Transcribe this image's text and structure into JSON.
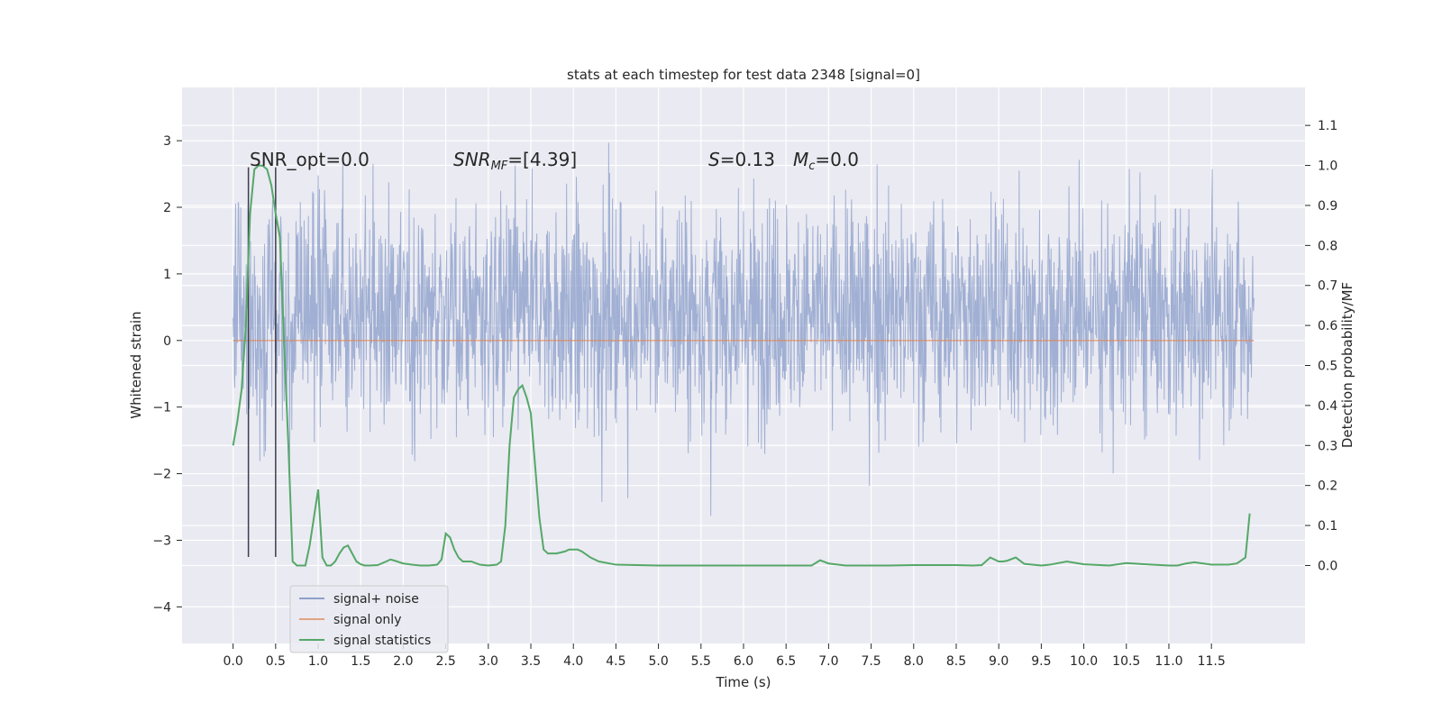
{
  "chart_data": {
    "type": "line",
    "title": "stats at each timestep for test data 2348 [signal=0]",
    "xlabel": "Time (s)",
    "ylabel_left": "Whitened strain",
    "ylabel_right": "Detection probability/MF",
    "xlim": [
      -0.6,
      12.6
    ],
    "ylim_left": [
      -4.55,
      3.8
    ],
    "ylim_right": [
      -0.195,
      1.195
    ],
    "x_ticks": [
      0.0,
      0.5,
      1.0,
      1.5,
      2.0,
      2.5,
      3.0,
      3.5,
      4.0,
      4.5,
      5.0,
      5.5,
      6.0,
      6.5,
      7.0,
      7.5,
      8.0,
      8.5,
      9.0,
      9.5,
      10.0,
      10.5,
      11.0,
      11.5
    ],
    "x_tick_labels": [
      "0.0",
      "0.5",
      "1.0",
      "1.5",
      "2.0",
      "2.5",
      "3.0",
      "3.5",
      "4.0",
      "4.5",
      "5.0",
      "5.5",
      "6.0",
      "6.5",
      "7.0",
      "7.5",
      "8.0",
      "8.5",
      "9.0",
      "9.5",
      "10.0",
      "10.5",
      "11.0",
      "11.5"
    ],
    "y_left_ticks": [
      -4,
      -3,
      -2,
      -1,
      0,
      1,
      2,
      3
    ],
    "y_left_tick_labels": [
      "−4",
      "−3",
      "−2",
      "−1",
      "0",
      "1",
      "2",
      "3"
    ],
    "y_right_ticks": [
      0.0,
      0.1,
      0.2,
      0.3,
      0.4,
      0.5,
      0.6,
      0.7,
      0.8,
      0.9,
      1.0,
      1.1
    ],
    "y_right_tick_labels": [
      "0.0",
      "0.1",
      "0.2",
      "0.3",
      "0.4",
      "0.5",
      "0.6",
      "0.7",
      "0.8",
      "0.9",
      "1.0",
      "1.1"
    ],
    "grid": true,
    "legend_position": "lower-left",
    "annotations": {
      "snr_opt": "SNR_opt=0.0",
      "snr_mf_sym": "SNR",
      "snr_mf_sub": "MF",
      "snr_mf_val": "=[4.39]",
      "s_sym": "S",
      "s_val": "=0.13",
      "mc_sym": "M",
      "mc_sub": "c",
      "mc_val": "=0.0"
    },
    "vertical_markers_x": [
      0.18,
      0.5
    ],
    "vertical_markers_range": [
      -3.25,
      2.6
    ],
    "series": [
      {
        "name": "signal+ noise",
        "axis": "left",
        "color": "#8da0cb",
        "description_range": [
          -4.1,
          3.5
        ],
        "x_range": [
          0.0,
          12.0
        ]
      },
      {
        "name": "signal only",
        "axis": "left",
        "color": "#dd8452",
        "x": [
          0.0,
          12.0
        ],
        "values": [
          0.0,
          0.0
        ]
      },
      {
        "name": "signal statistics",
        "axis": "right",
        "color": "#55a868",
        "x": [
          0.0,
          0.05,
          0.1,
          0.15,
          0.2,
          0.25,
          0.3,
          0.35,
          0.4,
          0.45,
          0.5,
          0.55,
          0.6,
          0.65,
          0.7,
          0.75,
          0.8,
          0.85,
          0.9,
          0.95,
          1.0,
          1.05,
          1.1,
          1.15,
          1.2,
          1.25,
          1.3,
          1.35,
          1.4,
          1.45,
          1.5,
          1.55,
          1.6,
          1.7,
          1.8,
          1.85,
          1.9,
          2.0,
          2.1,
          2.2,
          2.3,
          2.4,
          2.45,
          2.5,
          2.55,
          2.6,
          2.65,
          2.7,
          2.8,
          2.9,
          3.0,
          3.1,
          3.15,
          3.2,
          3.25,
          3.3,
          3.35,
          3.4,
          3.45,
          3.5,
          3.55,
          3.6,
          3.65,
          3.7,
          3.8,
          3.9,
          3.95,
          4.0,
          4.05,
          4.1,
          4.2,
          4.3,
          4.5,
          5.0,
          6.0,
          6.8,
          6.9,
          7.0,
          7.2,
          7.5,
          7.7,
          8.0,
          8.5,
          8.7,
          8.8,
          8.9,
          9.0,
          9.05,
          9.1,
          9.2,
          9.3,
          9.5,
          9.6,
          9.8,
          10.0,
          10.3,
          10.4,
          10.5,
          10.8,
          11.0,
          11.1,
          11.2,
          11.3,
          11.5,
          11.7,
          11.8,
          11.9,
          11.95
        ],
        "values": [
          0.3,
          0.36,
          0.44,
          0.6,
          0.88,
          0.99,
          1.0,
          0.999,
          0.99,
          0.95,
          0.88,
          0.82,
          0.55,
          0.3,
          0.01,
          0.0,
          0.0,
          0.0,
          0.05,
          0.12,
          0.19,
          0.02,
          0.0,
          0.0,
          0.01,
          0.03,
          0.045,
          0.05,
          0.03,
          0.01,
          0.003,
          0.0,
          0.0,
          0.001,
          0.01,
          0.015,
          0.012,
          0.005,
          0.002,
          0.0,
          0.0,
          0.002,
          0.015,
          0.08,
          0.07,
          0.04,
          0.02,
          0.01,
          0.01,
          0.002,
          0.0,
          0.002,
          0.01,
          0.1,
          0.3,
          0.42,
          0.44,
          0.45,
          0.42,
          0.38,
          0.25,
          0.12,
          0.04,
          0.03,
          0.03,
          0.035,
          0.04,
          0.04,
          0.04,
          0.035,
          0.02,
          0.01,
          0.002,
          0.0,
          0.0,
          0.0,
          0.013,
          0.005,
          0.0,
          0.0,
          0.0,
          0.001,
          0.001,
          0.0,
          0.001,
          0.02,
          0.01,
          0.01,
          0.012,
          0.02,
          0.004,
          0.0,
          0.002,
          0.01,
          0.003,
          0.0,
          0.003,
          0.006,
          0.002,
          0.0,
          0.0,
          0.005,
          0.008,
          0.002,
          0.002,
          0.005,
          0.02,
          0.13
        ]
      }
    ]
  }
}
